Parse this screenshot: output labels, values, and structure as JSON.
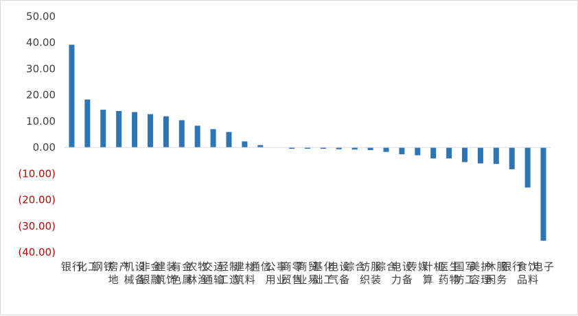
{
  "chart_data": {
    "type": "bar",
    "title": "",
    "xlabel": "",
    "ylabel": "",
    "ylim": [
      -40,
      50
    ],
    "y_ticks": [
      50,
      40,
      30,
      20,
      10,
      0,
      -10,
      -20,
      -30,
      -40
    ],
    "y_tick_labels": [
      "50.00",
      "40.00",
      "30.00",
      "20.00",
      "10.00",
      "0.00",
      "(10.00)",
      "(20.00)",
      "(30.00)",
      "(40.00)"
    ],
    "grid": false,
    "legend": "none",
    "bar_color": "#2e75b6",
    "positive_label_color": "#404040",
    "negative_label_color": "#c00000",
    "categories": [
      "银行",
      "化工",
      "钢铁",
      "房地产",
      "机械设备",
      "非银金融",
      "建筑装饰",
      "有色金属",
      "农林牧渔",
      "交通运输",
      "轻工制造",
      "建筑材料",
      "通信",
      "公用事业",
      "商贸零售",
      "商业贸易",
      "基础化工",
      "电气设备",
      "综合",
      "纺织服装",
      "综合",
      "电力设备",
      "传媒",
      "计算机",
      "医药生物",
      "国防军工",
      "美容护理",
      "休闲服务",
      "银行",
      "食品饮料",
      "电子"
    ],
    "values": [
      39.2,
      18.3,
      14.4,
      13.9,
      13.5,
      12.7,
      11.9,
      10.4,
      8.3,
      7.0,
      5.9,
      2.3,
      0.9,
      0.0,
      -0.5,
      -0.5,
      -0.5,
      -0.7,
      -0.8,
      -1.0,
      -1.7,
      -2.6,
      -3.0,
      -4.2,
      -4.2,
      -5.6,
      -6.1,
      -6.3,
      -8.3,
      -15.3,
      -35.6
    ]
  }
}
